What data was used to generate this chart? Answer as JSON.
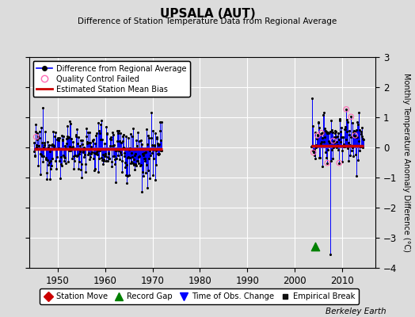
{
  "title": "UPSALA (AUT)",
  "subtitle": "Difference of Station Temperature Data from Regional Average",
  "ylabel_right": "Monthly Temperature Anomaly Difference (°C)",
  "watermark": "Berkeley Earth",
  "xlim": [
    1944,
    2017
  ],
  "ylim": [
    -4,
    3
  ],
  "yticks": [
    -4,
    -3,
    -2,
    -1,
    0,
    1,
    2,
    3
  ],
  "xticks": [
    1950,
    1960,
    1970,
    1980,
    1990,
    2000,
    2010
  ],
  "bg_color": "#dcdcdc",
  "line_color": "#0000ff",
  "bias_color": "#cc0000",
  "marker_color": "#000000",
  "qc_color": "#ff69b4",
  "seg1_x_start": 1945.0,
  "seg1_x_end": 1972.0,
  "seg1_bias": -0.05,
  "seg2_x_start": 2003.5,
  "seg2_x_end": 2014.5,
  "seg2_bias": 0.05,
  "long_spike_x": 2007.5,
  "long_spike_y_bot": -3.55,
  "long_spike_y_top": 0.8,
  "record_gap_x": 2004.3,
  "record_gap_y": -3.3,
  "legend1_labels": [
    "Difference from Regional Average",
    "Quality Control Failed",
    "Estimated Station Mean Bias"
  ],
  "legend2_labels": [
    "Station Move",
    "Record Gap",
    "Time of Obs. Change",
    "Empirical Break"
  ],
  "legend2_colors": [
    "#cc0000",
    "#008000",
    "#0000ff",
    "#111111"
  ],
  "legend2_markers": [
    "D",
    "^",
    "v",
    "s"
  ]
}
